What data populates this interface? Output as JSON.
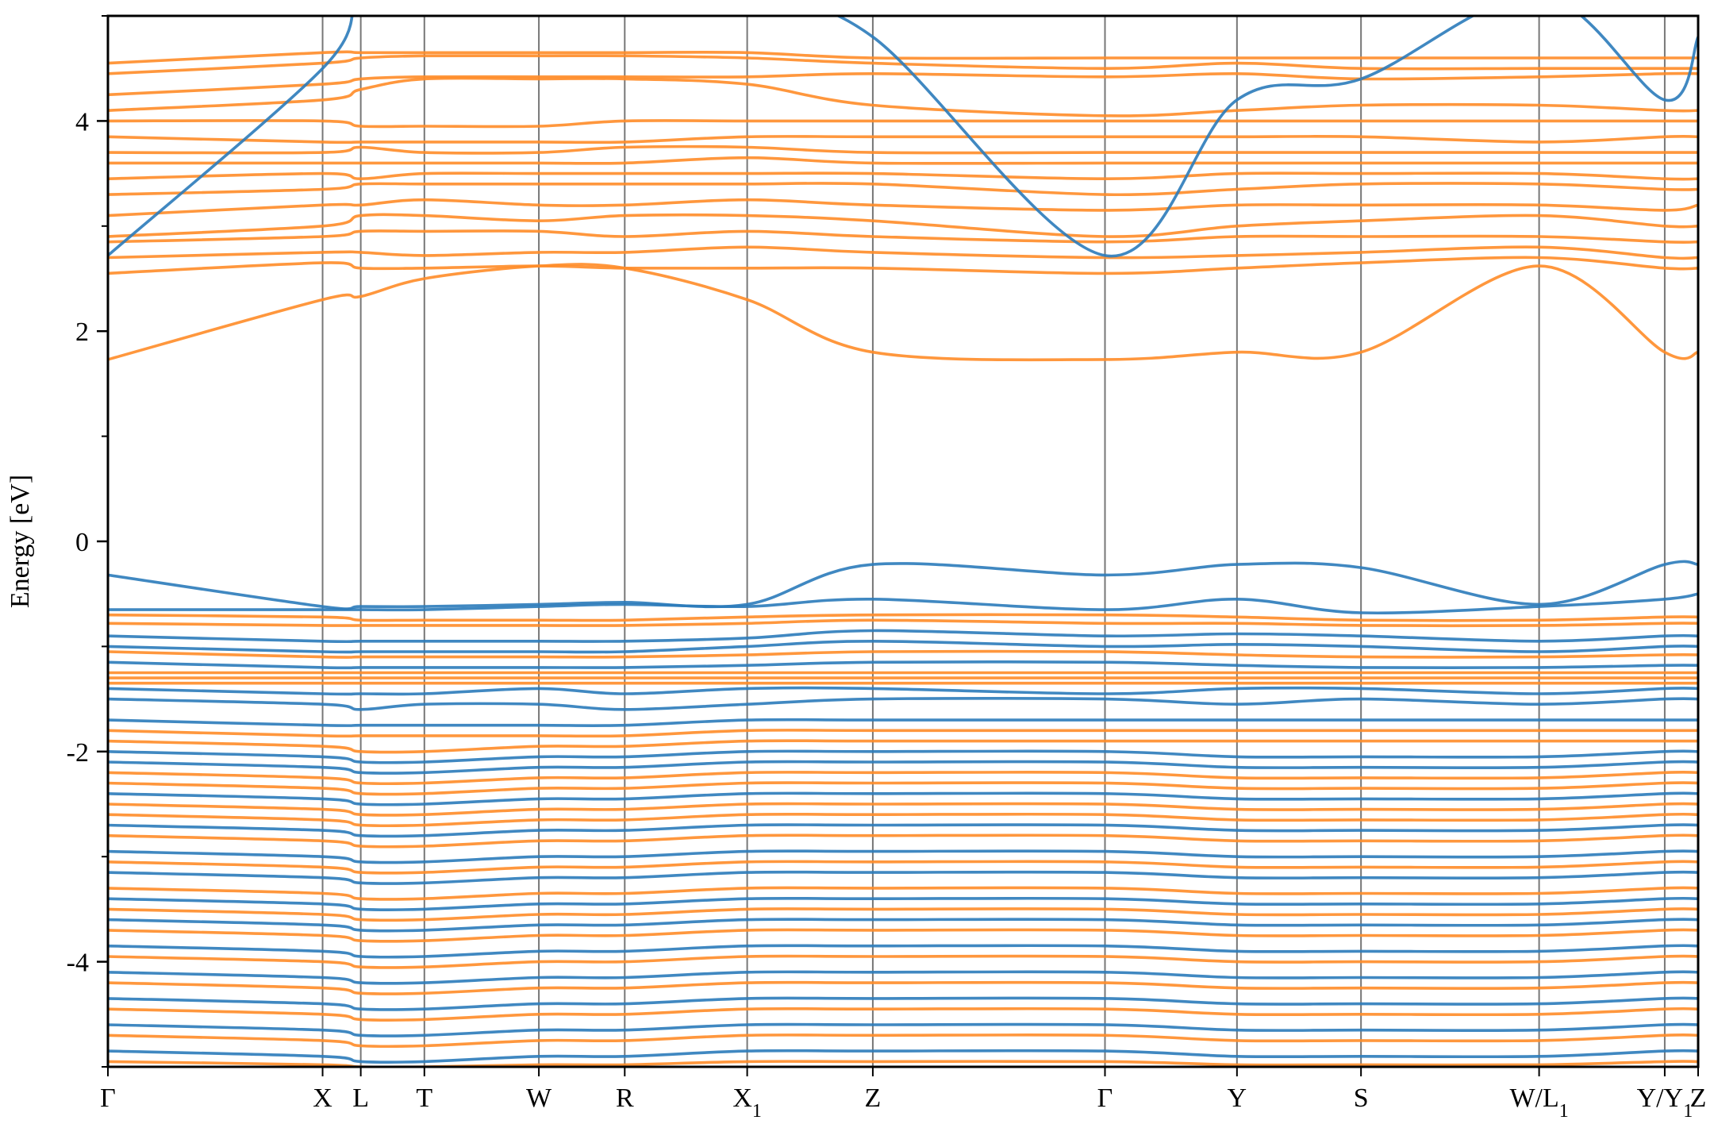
{
  "chart_data": {
    "type": "line",
    "title": "",
    "xlabel": "",
    "ylabel": "Energy [eV]",
    "ylim": [
      -5,
      5
    ],
    "yticks": [
      -4,
      -2,
      0,
      2,
      4
    ],
    "yticks_minor": [
      -5,
      -3,
      -1,
      1,
      3,
      5
    ],
    "kpoints": [
      {
        "label": "Γ",
        "sub": "",
        "x": 0.0
      },
      {
        "label": "X",
        "sub": "",
        "x": 0.135
      },
      {
        "label": "L",
        "sub": "",
        "x": 0.159
      },
      {
        "label": "T",
        "sub": "",
        "x": 0.199
      },
      {
        "label": "W",
        "sub": "",
        "x": 0.271
      },
      {
        "label": "R",
        "sub": "",
        "x": 0.325
      },
      {
        "label": "X",
        "sub": "1",
        "x": 0.402
      },
      {
        "label": "Z",
        "sub": "",
        "x": 0.481
      },
      {
        "label": "Γ",
        "sub": "",
        "x": 0.627
      },
      {
        "label": "Y",
        "sub": "",
        "x": 0.71
      },
      {
        "label": "S",
        "sub": "",
        "x": 0.788
      },
      {
        "label": "W/L",
        "sub": "1",
        "x": 0.9
      },
      {
        "label": "Y/Y",
        "sub": "1",
        "x": 0.979
      },
      {
        "label": "Z",
        "sub": "",
        "x": 1.0
      }
    ],
    "grid": "vertical lines at high-symmetry points",
    "legend": "none",
    "colors": {
      "spin_up": "#2b7bba",
      "spin_down": "#ff8c28"
    },
    "series": [
      {
        "color": "#ff8c28",
        "values": [
          1.73,
          2.3,
          2.33,
          2.5,
          2.62,
          2.6,
          2.3,
          1.8,
          1.73,
          1.8,
          1.8,
          2.62,
          1.8,
          1.8
        ]
      },
      {
        "color": "#ff8c28",
        "values": [
          2.55,
          2.65,
          2.6,
          2.6,
          2.62,
          2.6,
          2.6,
          2.6,
          2.55,
          2.6,
          2.65,
          2.7,
          2.6,
          2.6
        ]
      },
      {
        "color": "#ff8c28",
        "values": [
          2.7,
          2.75,
          2.75,
          2.72,
          2.75,
          2.75,
          2.8,
          2.75,
          2.7,
          2.72,
          2.75,
          2.8,
          2.7,
          2.7
        ]
      },
      {
        "color": "#ff8c28",
        "values": [
          2.85,
          2.9,
          2.95,
          2.95,
          2.95,
          2.9,
          2.95,
          2.9,
          2.85,
          2.9,
          2.9,
          2.9,
          2.85,
          2.85
        ]
      },
      {
        "color": "#ff8c28",
        "values": [
          2.9,
          3.0,
          3.1,
          3.1,
          3.05,
          3.1,
          3.1,
          3.05,
          2.9,
          3.0,
          3.05,
          3.1,
          3.0,
          3.0
        ]
      },
      {
        "color": "#ff8c28",
        "values": [
          3.1,
          3.2,
          3.2,
          3.25,
          3.2,
          3.2,
          3.25,
          3.2,
          3.15,
          3.2,
          3.2,
          3.2,
          3.15,
          3.2
        ]
      },
      {
        "color": "#ff8c28",
        "values": [
          3.3,
          3.35,
          3.4,
          3.4,
          3.4,
          3.4,
          3.4,
          3.4,
          3.3,
          3.35,
          3.4,
          3.4,
          3.35,
          3.35
        ]
      },
      {
        "color": "#ff8c28",
        "values": [
          3.45,
          3.5,
          3.45,
          3.5,
          3.5,
          3.5,
          3.5,
          3.5,
          3.45,
          3.5,
          3.5,
          3.5,
          3.45,
          3.45
        ]
      },
      {
        "color": "#ff8c28",
        "values": [
          3.6,
          3.6,
          3.6,
          3.6,
          3.6,
          3.6,
          3.65,
          3.6,
          3.6,
          3.6,
          3.6,
          3.6,
          3.6,
          3.6
        ]
      },
      {
        "color": "#ff8c28",
        "values": [
          3.7,
          3.7,
          3.75,
          3.7,
          3.7,
          3.75,
          3.75,
          3.7,
          3.7,
          3.7,
          3.7,
          3.7,
          3.7,
          3.7
        ]
      },
      {
        "color": "#ff8c28",
        "values": [
          3.85,
          3.8,
          3.8,
          3.8,
          3.8,
          3.8,
          3.85,
          3.85,
          3.85,
          3.85,
          3.85,
          3.8,
          3.85,
          3.85
        ]
      },
      {
        "color": "#ff8c28",
        "values": [
          4.0,
          4.0,
          3.95,
          3.95,
          3.95,
          4.0,
          4.0,
          4.0,
          4.0,
          4.0,
          4.0,
          4.0,
          4.0,
          4.0
        ]
      },
      {
        "color": "#ff8c28",
        "values": [
          4.1,
          4.2,
          4.3,
          4.4,
          4.4,
          4.4,
          4.35,
          4.15,
          4.05,
          4.1,
          4.15,
          4.15,
          4.1,
          4.1
        ]
      },
      {
        "color": "#ff8c28",
        "values": [
          4.25,
          4.35,
          4.4,
          4.42,
          4.42,
          4.42,
          4.42,
          4.45,
          4.42,
          4.45,
          4.4,
          4.42,
          4.45,
          4.45
        ]
      },
      {
        "color": "#ff8c28",
        "values": [
          4.45,
          4.55,
          4.6,
          4.62,
          4.62,
          4.62,
          4.6,
          4.55,
          4.5,
          4.55,
          4.5,
          4.5,
          4.5,
          4.5
        ]
      },
      {
        "color": "#ff8c28",
        "values": [
          4.55,
          4.65,
          4.65,
          4.65,
          4.65,
          4.65,
          4.65,
          4.6,
          4.6,
          4.6,
          4.6,
          4.6,
          4.6,
          4.6
        ]
      },
      {
        "color": "#2b7bba",
        "values": [
          2.72,
          4.5,
          5.2,
          5.5,
          5.5,
          5.5,
          5.2,
          4.8,
          2.72,
          4.2,
          4.4,
          5.2,
          4.2,
          4.8
        ]
      },
      {
        "color": "#2b7bba",
        "values": [
          -0.32,
          -0.62,
          -0.62,
          -0.62,
          -0.6,
          -0.58,
          -0.6,
          -0.22,
          -0.32,
          -0.22,
          -0.25,
          -0.6,
          -0.22,
          -0.22
        ]
      },
      {
        "color": "#2b7bba",
        "values": [
          -0.65,
          -0.65,
          -0.65,
          -0.65,
          -0.62,
          -0.6,
          -0.62,
          -0.55,
          -0.65,
          -0.55,
          -0.68,
          -0.62,
          -0.55,
          -0.5
        ]
      },
      {
        "color": "#ff8c28",
        "values": [
          -0.7,
          -0.72,
          -0.75,
          -0.75,
          -0.75,
          -0.75,
          -0.72,
          -0.7,
          -0.7,
          -0.72,
          -0.75,
          -0.75,
          -0.72,
          -0.72
        ]
      },
      {
        "color": "#ff8c28",
        "values": [
          -0.78,
          -0.8,
          -0.8,
          -0.8,
          -0.8,
          -0.8,
          -0.78,
          -0.75,
          -0.78,
          -0.78,
          -0.8,
          -0.8,
          -0.78,
          -0.78
        ]
      },
      {
        "color": "#2b7bba",
        "values": [
          -0.9,
          -0.95,
          -0.95,
          -0.95,
          -0.95,
          -0.95,
          -0.92,
          -0.85,
          -0.9,
          -0.88,
          -0.9,
          -0.95,
          -0.9,
          -0.9
        ]
      },
      {
        "color": "#2b7bba",
        "values": [
          -1.0,
          -1.05,
          -1.05,
          -1.05,
          -1.05,
          -1.05,
          -1.0,
          -0.95,
          -1.0,
          -0.98,
          -1.0,
          -1.05,
          -1.0,
          -1.0
        ]
      },
      {
        "color": "#ff8c28",
        "values": [
          -1.05,
          -1.1,
          -1.1,
          -1.1,
          -1.1,
          -1.1,
          -1.08,
          -1.05,
          -1.05,
          -1.08,
          -1.1,
          -1.1,
          -1.08,
          -1.08
        ]
      },
      {
        "color": "#2b7bba",
        "values": [
          -1.15,
          -1.2,
          -1.2,
          -1.2,
          -1.2,
          -1.2,
          -1.18,
          -1.15,
          -1.15,
          -1.18,
          -1.2,
          -1.2,
          -1.18,
          -1.18
        ]
      },
      {
        "color": "#ff8c28",
        "values": [
          -1.25,
          -1.25,
          -1.25,
          -1.25,
          -1.25,
          -1.25,
          -1.25,
          -1.25,
          -1.25,
          -1.25,
          -1.25,
          -1.25,
          -1.25,
          -1.25
        ]
      },
      {
        "color": "#ff8c28",
        "values": [
          -1.3,
          -1.3,
          -1.3,
          -1.3,
          -1.3,
          -1.3,
          -1.3,
          -1.3,
          -1.3,
          -1.3,
          -1.3,
          -1.3,
          -1.3,
          -1.3
        ]
      },
      {
        "color": "#ff8c28",
        "values": [
          -1.35,
          -1.35,
          -1.35,
          -1.35,
          -1.35,
          -1.35,
          -1.35,
          -1.35,
          -1.35,
          -1.35,
          -1.35,
          -1.35,
          -1.35,
          -1.35
        ]
      },
      {
        "color": "#2b7bba",
        "values": [
          -1.4,
          -1.45,
          -1.45,
          -1.45,
          -1.4,
          -1.45,
          -1.4,
          -1.4,
          -1.45,
          -1.4,
          -1.4,
          -1.45,
          -1.4,
          -1.4
        ]
      },
      {
        "color": "#2b7bba",
        "values": [
          -1.5,
          -1.55,
          -1.6,
          -1.55,
          -1.55,
          -1.6,
          -1.55,
          -1.5,
          -1.5,
          -1.55,
          -1.5,
          -1.55,
          -1.5,
          -1.5
        ]
      },
      {
        "color": "#2b7bba",
        "values": [
          -1.7,
          -1.75,
          -1.75,
          -1.75,
          -1.75,
          -1.75,
          -1.7,
          -1.7,
          -1.7,
          -1.7,
          -1.7,
          -1.7,
          -1.7,
          -1.7
        ]
      },
      {
        "color": "#ff8c28",
        "values": [
          -1.8,
          -1.85,
          -1.85,
          -1.85,
          -1.85,
          -1.85,
          -1.8,
          -1.8,
          -1.8,
          -1.8,
          -1.8,
          -1.8,
          -1.8,
          -1.8
        ]
      },
      {
        "color": "#ff8c28",
        "values": [
          -1.9,
          -1.95,
          -2.0,
          -2.0,
          -1.95,
          -1.95,
          -1.9,
          -1.9,
          -1.9,
          -1.9,
          -1.9,
          -1.9,
          -1.9,
          -1.9
        ]
      },
      {
        "color": "#2b7bba",
        "values": [
          -2.0,
          -2.05,
          -2.1,
          -2.1,
          -2.05,
          -2.05,
          -2.0,
          -2.0,
          -2.0,
          -2.05,
          -2.05,
          -2.05,
          -2.0,
          -2.0
        ]
      },
      {
        "color": "#2b7bba",
        "values": [
          -2.1,
          -2.15,
          -2.2,
          -2.2,
          -2.15,
          -2.15,
          -2.1,
          -2.1,
          -2.1,
          -2.15,
          -2.15,
          -2.15,
          -2.1,
          -2.1
        ]
      },
      {
        "color": "#ff8c28",
        "values": [
          -2.2,
          -2.25,
          -2.3,
          -2.3,
          -2.25,
          -2.25,
          -2.2,
          -2.2,
          -2.2,
          -2.25,
          -2.25,
          -2.25,
          -2.2,
          -2.2
        ]
      },
      {
        "color": "#ff8c28",
        "values": [
          -2.3,
          -2.35,
          -2.4,
          -2.4,
          -2.35,
          -2.35,
          -2.3,
          -2.3,
          -2.3,
          -2.35,
          -2.35,
          -2.35,
          -2.3,
          -2.3
        ]
      },
      {
        "color": "#2b7bba",
        "values": [
          -2.4,
          -2.45,
          -2.5,
          -2.5,
          -2.45,
          -2.45,
          -2.4,
          -2.4,
          -2.4,
          -2.45,
          -2.45,
          -2.45,
          -2.4,
          -2.4
        ]
      },
      {
        "color": "#ff8c28",
        "values": [
          -2.5,
          -2.55,
          -2.6,
          -2.6,
          -2.55,
          -2.55,
          -2.5,
          -2.5,
          -2.5,
          -2.55,
          -2.55,
          -2.55,
          -2.5,
          -2.5
        ]
      },
      {
        "color": "#ff8c28",
        "values": [
          -2.6,
          -2.65,
          -2.7,
          -2.7,
          -2.65,
          -2.65,
          -2.6,
          -2.6,
          -2.6,
          -2.65,
          -2.65,
          -2.65,
          -2.6,
          -2.6
        ]
      },
      {
        "color": "#2b7bba",
        "values": [
          -2.7,
          -2.75,
          -2.8,
          -2.8,
          -2.75,
          -2.75,
          -2.7,
          -2.7,
          -2.7,
          -2.75,
          -2.75,
          -2.75,
          -2.7,
          -2.7
        ]
      },
      {
        "color": "#ff8c28",
        "values": [
          -2.8,
          -2.85,
          -2.9,
          -2.9,
          -2.85,
          -2.85,
          -2.8,
          -2.8,
          -2.8,
          -2.85,
          -2.85,
          -2.85,
          -2.8,
          -2.8
        ]
      },
      {
        "color": "#2b7bba",
        "values": [
          -2.95,
          -3.0,
          -3.05,
          -3.05,
          -3.0,
          -3.0,
          -2.95,
          -2.95,
          -2.95,
          -3.0,
          -3.0,
          -3.0,
          -2.95,
          -2.95
        ]
      },
      {
        "color": "#ff8c28",
        "values": [
          -3.05,
          -3.1,
          -3.15,
          -3.15,
          -3.1,
          -3.1,
          -3.05,
          -3.05,
          -3.05,
          -3.1,
          -3.1,
          -3.1,
          -3.05,
          -3.05
        ]
      },
      {
        "color": "#2b7bba",
        "values": [
          -3.15,
          -3.2,
          -3.25,
          -3.25,
          -3.2,
          -3.2,
          -3.15,
          -3.15,
          -3.15,
          -3.2,
          -3.2,
          -3.2,
          -3.15,
          -3.15
        ]
      },
      {
        "color": "#ff8c28",
        "values": [
          -3.3,
          -3.35,
          -3.4,
          -3.4,
          -3.35,
          -3.35,
          -3.3,
          -3.3,
          -3.3,
          -3.35,
          -3.35,
          -3.35,
          -3.3,
          -3.3
        ]
      },
      {
        "color": "#2b7bba",
        "values": [
          -3.4,
          -3.45,
          -3.5,
          -3.5,
          -3.45,
          -3.45,
          -3.4,
          -3.4,
          -3.4,
          -3.45,
          -3.45,
          -3.45,
          -3.4,
          -3.4
        ]
      },
      {
        "color": "#ff8c28",
        "values": [
          -3.5,
          -3.55,
          -3.6,
          -3.6,
          -3.55,
          -3.55,
          -3.5,
          -3.5,
          -3.5,
          -3.55,
          -3.55,
          -3.55,
          -3.5,
          -3.5
        ]
      },
      {
        "color": "#2b7bba",
        "values": [
          -3.6,
          -3.65,
          -3.7,
          -3.7,
          -3.65,
          -3.65,
          -3.6,
          -3.6,
          -3.6,
          -3.65,
          -3.65,
          -3.65,
          -3.6,
          -3.6
        ]
      },
      {
        "color": "#ff8c28",
        "values": [
          -3.7,
          -3.75,
          -3.8,
          -3.8,
          -3.75,
          -3.75,
          -3.7,
          -3.7,
          -3.7,
          -3.75,
          -3.75,
          -3.75,
          -3.7,
          -3.7
        ]
      },
      {
        "color": "#2b7bba",
        "values": [
          -3.85,
          -3.9,
          -3.95,
          -3.95,
          -3.9,
          -3.9,
          -3.85,
          -3.85,
          -3.85,
          -3.9,
          -3.9,
          -3.9,
          -3.85,
          -3.85
        ]
      },
      {
        "color": "#ff8c28",
        "values": [
          -3.95,
          -4.0,
          -4.05,
          -4.05,
          -4.0,
          -4.0,
          -3.95,
          -3.95,
          -3.95,
          -4.0,
          -4.0,
          -4.0,
          -3.95,
          -3.95
        ]
      },
      {
        "color": "#2b7bba",
        "values": [
          -4.1,
          -4.15,
          -4.2,
          -4.2,
          -4.15,
          -4.15,
          -4.1,
          -4.1,
          -4.1,
          -4.15,
          -4.15,
          -4.15,
          -4.1,
          -4.1
        ]
      },
      {
        "color": "#ff8c28",
        "values": [
          -4.2,
          -4.25,
          -4.3,
          -4.3,
          -4.25,
          -4.25,
          -4.2,
          -4.2,
          -4.2,
          -4.25,
          -4.25,
          -4.25,
          -4.2,
          -4.2
        ]
      },
      {
        "color": "#2b7bba",
        "values": [
          -4.35,
          -4.4,
          -4.45,
          -4.45,
          -4.4,
          -4.4,
          -4.35,
          -4.35,
          -4.35,
          -4.4,
          -4.4,
          -4.4,
          -4.35,
          -4.35
        ]
      },
      {
        "color": "#ff8c28",
        "values": [
          -4.45,
          -4.5,
          -4.55,
          -4.55,
          -4.5,
          -4.5,
          -4.45,
          -4.45,
          -4.45,
          -4.5,
          -4.5,
          -4.5,
          -4.45,
          -4.45
        ]
      },
      {
        "color": "#2b7bba",
        "values": [
          -4.6,
          -4.65,
          -4.7,
          -4.7,
          -4.65,
          -4.65,
          -4.6,
          -4.6,
          -4.6,
          -4.65,
          -4.65,
          -4.65,
          -4.6,
          -4.6
        ]
      },
      {
        "color": "#ff8c28",
        "values": [
          -4.7,
          -4.75,
          -4.8,
          -4.8,
          -4.75,
          -4.75,
          -4.7,
          -4.7,
          -4.7,
          -4.75,
          -4.75,
          -4.75,
          -4.7,
          -4.7
        ]
      },
      {
        "color": "#2b7bba",
        "values": [
          -4.85,
          -4.9,
          -4.95,
          -4.95,
          -4.9,
          -4.9,
          -4.85,
          -4.85,
          -4.85,
          -4.9,
          -4.9,
          -4.9,
          -4.85,
          -4.85
        ]
      },
      {
        "color": "#ff8c28",
        "values": [
          -4.95,
          -4.98,
          -5.0,
          -5.0,
          -4.98,
          -4.98,
          -4.95,
          -4.95,
          -4.95,
          -4.98,
          -4.98,
          -4.98,
          -4.95,
          -4.95
        ]
      }
    ]
  }
}
